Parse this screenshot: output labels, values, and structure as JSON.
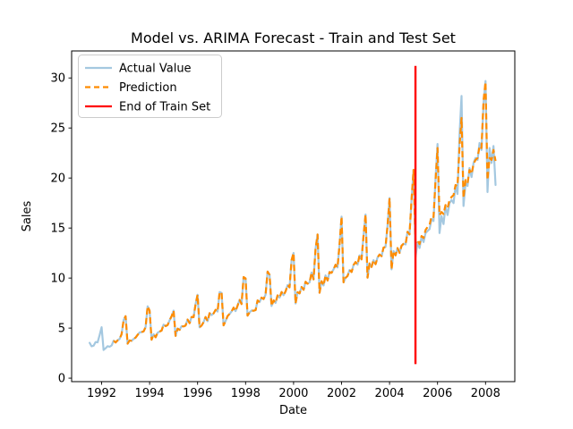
{
  "figure": {
    "title": "Model vs. ARIMA Forecast - Train and Test Set",
    "xlabel": "Date",
    "ylabel": "Sales"
  },
  "legend": {
    "items": [
      {
        "label": "Actual Value",
        "color": "#a4c8e0",
        "style": "solid"
      },
      {
        "label": "Prediction",
        "color": "#ff8c00",
        "style": "dashed"
      },
      {
        "label": "End of Train Set",
        "color": "#ff0000",
        "style": "solid"
      }
    ]
  },
  "chart_data": {
    "type": "line",
    "title": "Model vs. ARIMA Forecast - Train and Test Set",
    "xlabel": "Date",
    "ylabel": "Sales",
    "xlim": [
      1990.75,
      2009.22
    ],
    "ylim": [
      -0.35,
      32.7
    ],
    "x_ticks": [
      1992,
      1994,
      1996,
      1998,
      2000,
      2002,
      2004,
      2006,
      2008
    ],
    "y_ticks": [
      0,
      5,
      10,
      15,
      20,
      25,
      30
    ],
    "grid": false,
    "legend_position": "upper left",
    "x_unit": "decimal_year_monthly",
    "series": [
      {
        "name": "Actual Value",
        "color": "#a4c8e0",
        "line_style": "solid",
        "start": 1991.5,
        "step_months": 1,
        "values": [
          3.53,
          3.18,
          3.25,
          3.61,
          3.57,
          4.31,
          5.09,
          2.81,
          2.99,
          3.2,
          3.13,
          3.27,
          3.74,
          3.56,
          3.78,
          3.92,
          4.39,
          5.81,
          6.19,
          3.45,
          3.77,
          3.73,
          3.91,
          4.05,
          4.32,
          4.56,
          4.61,
          4.67,
          5.09,
          7.18,
          6.73,
          3.84,
          4.39,
          4.08,
          4.54,
          4.65,
          4.75,
          5.35,
          5.2,
          5.3,
          5.77,
          6.2,
          6.75,
          4.22,
          4.95,
          4.82,
          5.19,
          5.17,
          5.26,
          5.86,
          5.49,
          6.12,
          6.09,
          7.42,
          8.33,
          5.07,
          5.26,
          5.6,
          6.11,
          5.69,
          6.49,
          6.3,
          6.47,
          6.83,
          6.65,
          8.61,
          8.52,
          5.28,
          5.71,
          6.21,
          6.41,
          6.67,
          7.05,
          6.7,
          7.25,
          7.82,
          7.4,
          10.1,
          9.97,
          6.24,
          6.58,
          6.76,
          6.73,
          6.8,
          7.77,
          7.6,
          8.05,
          7.9,
          8.33,
          10.65,
          10.33,
          7.21,
          7.78,
          7.52,
          8.27,
          8.05,
          8.61,
          8.29,
          8.68,
          9.31,
          9.07,
          11.81,
          12.51,
          7.46,
          8.59,
          8.47,
          9.11,
          8.83,
          9.64,
          9.43,
          9.57,
          10.56,
          9.87,
          12.96,
          14.36,
          8.53,
          9.69,
          9.26,
          10.27,
          9.76,
          10.6,
          10.52,
          10.88,
          11.33,
          11.07,
          13.4,
          16.14,
          9.57,
          10.03,
          10.21,
          10.81,
          10.6,
          11.31,
          11.6,
          11.34,
          12.27,
          11.87,
          14.3,
          16.35,
          10.04,
          11.47,
          11.11,
          11.79,
          11.39,
          12.06,
          12.35,
          12.19,
          13.05,
          13.11,
          15.3,
          18.0,
          10.87,
          12.7,
          12.27,
          13.0,
          12.51,
          13.24,
          13.42,
          13.36,
          14.63,
          14.36,
          17.9,
          20.81,
          12.1,
          13.6,
          13.0,
          14.1,
          13.6,
          14.5,
          14.7,
          14.9,
          15.9,
          15.7,
          20.0,
          23.4,
          14.5,
          16.2,
          15.4,
          17.2,
          16.3,
          17.5,
          17.8,
          17.5,
          19.2,
          18.4,
          24.4,
          28.2,
          17.2,
          19.5,
          19.2,
          21.0,
          20.1,
          21.5,
          22.0,
          21.8,
          23.5,
          22.8,
          27.5,
          29.7,
          18.6,
          23.0,
          21.5,
          23.2,
          19.3
        ]
      },
      {
        "name": "Prediction",
        "color": "#ff8c00",
        "line_style": "dashed",
        "start": 1992.5,
        "step_months": 1,
        "values": [
          3.74,
          3.56,
          3.78,
          3.92,
          4.39,
          5.81,
          6.19,
          3.45,
          3.77,
          3.73,
          3.91,
          4.05,
          4.32,
          4.56,
          4.61,
          4.67,
          5.09,
          7.18,
          6.73,
          3.84,
          4.39,
          4.08,
          4.54,
          4.65,
          4.75,
          5.35,
          5.2,
          5.3,
          5.77,
          6.2,
          6.75,
          4.22,
          4.95,
          4.82,
          5.19,
          5.17,
          5.26,
          5.86,
          5.49,
          6.12,
          6.09,
          7.42,
          8.33,
          5.07,
          5.26,
          5.6,
          6.11,
          5.69,
          6.49,
          6.3,
          6.47,
          6.83,
          6.65,
          8.61,
          8.52,
          5.28,
          5.71,
          6.21,
          6.41,
          6.67,
          7.05,
          6.7,
          7.25,
          7.82,
          7.4,
          10.1,
          9.97,
          6.24,
          6.58,
          6.76,
          6.73,
          6.8,
          7.77,
          7.6,
          8.05,
          7.9,
          8.33,
          10.65,
          10.33,
          7.21,
          7.78,
          7.52,
          8.27,
          8.05,
          8.61,
          8.29,
          8.68,
          9.31,
          9.07,
          11.81,
          12.51,
          7.46,
          8.59,
          8.47,
          9.11,
          8.83,
          9.64,
          9.43,
          9.57,
          10.56,
          9.87,
          12.96,
          14.36,
          8.53,
          9.69,
          9.26,
          10.27,
          9.76,
          10.6,
          10.52,
          10.88,
          11.33,
          11.07,
          13.4,
          16.14,
          9.57,
          10.03,
          10.21,
          10.81,
          10.6,
          11.31,
          11.6,
          11.34,
          12.27,
          11.87,
          14.3,
          16.35,
          10.04,
          11.47,
          11.11,
          11.79,
          11.39,
          12.06,
          12.35,
          12.19,
          13.05,
          13.11,
          15.3,
          18.0,
          10.87,
          12.7,
          12.27,
          13.0,
          12.51,
          13.24,
          13.42,
          13.36,
          14.63,
          14.36,
          17.9,
          20.81,
          13.5,
          13.8,
          13.4,
          14.2,
          14.0,
          14.8,
          15.1,
          15.3,
          16.2,
          16.1,
          19.8,
          23.0,
          16.3,
          16.6,
          16.4,
          17.3,
          17.0,
          17.8,
          18.1,
          18.3,
          19.3,
          19.2,
          23.2,
          26.0,
          18.0,
          19.8,
          19.5,
          20.8,
          20.4,
          21.4,
          21.8,
          22.0,
          23.2,
          23.0,
          27.8,
          29.6,
          19.8,
          22.0,
          21.8,
          22.8,
          21.7
        ]
      }
    ],
    "vline": {
      "label": "End of Train Set",
      "x": 2005.08,
      "ymin": 1.4,
      "ymax": 31.2,
      "color": "#ff0000"
    }
  }
}
